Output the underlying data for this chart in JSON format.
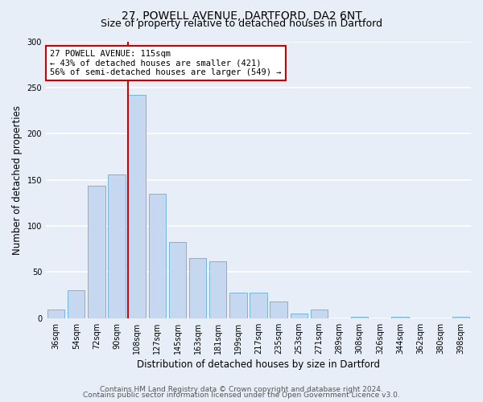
{
  "title": "27, POWELL AVENUE, DARTFORD, DA2 6NT",
  "subtitle": "Size of property relative to detached houses in Dartford",
  "xlabel": "Distribution of detached houses by size in Dartford",
  "ylabel": "Number of detached properties",
  "bin_labels": [
    "36sqm",
    "54sqm",
    "72sqm",
    "90sqm",
    "108sqm",
    "127sqm",
    "145sqm",
    "163sqm",
    "181sqm",
    "199sqm",
    "217sqm",
    "235sqm",
    "253sqm",
    "271sqm",
    "289sqm",
    "308sqm",
    "326sqm",
    "344sqm",
    "362sqm",
    "380sqm",
    "398sqm"
  ],
  "bar_values": [
    9,
    30,
    144,
    156,
    242,
    135,
    83,
    65,
    62,
    28,
    28,
    18,
    5,
    9,
    0,
    2,
    0,
    2,
    0,
    0,
    2
  ],
  "bar_color": "#c5d8f0",
  "bar_edge_color": "#6aaed6",
  "highlight_color": "#cc0000",
  "annotation_text_line1": "27 POWELL AVENUE: 115sqm",
  "annotation_text_line2": "← 43% of detached houses are smaller (421)",
  "annotation_text_line3": "56% of semi-detached houses are larger (549) →",
  "annotation_box_facecolor": "#ffffff",
  "annotation_border_color": "#cc0000",
  "ylim": [
    0,
    300
  ],
  "yticks": [
    0,
    50,
    100,
    150,
    200,
    250,
    300
  ],
  "footer_line1": "Contains HM Land Registry data © Crown copyright and database right 2024.",
  "footer_line2": "Contains public sector information licensed under the Open Government Licence v3.0.",
  "bg_color": "#e8eef8",
  "plot_bg_color": "#e8eef8",
  "grid_color": "#ffffff",
  "title_fontsize": 10,
  "subtitle_fontsize": 9,
  "axis_label_fontsize": 8.5,
  "tick_fontsize": 7,
  "annotation_fontsize": 7.5,
  "footer_fontsize": 6.5
}
